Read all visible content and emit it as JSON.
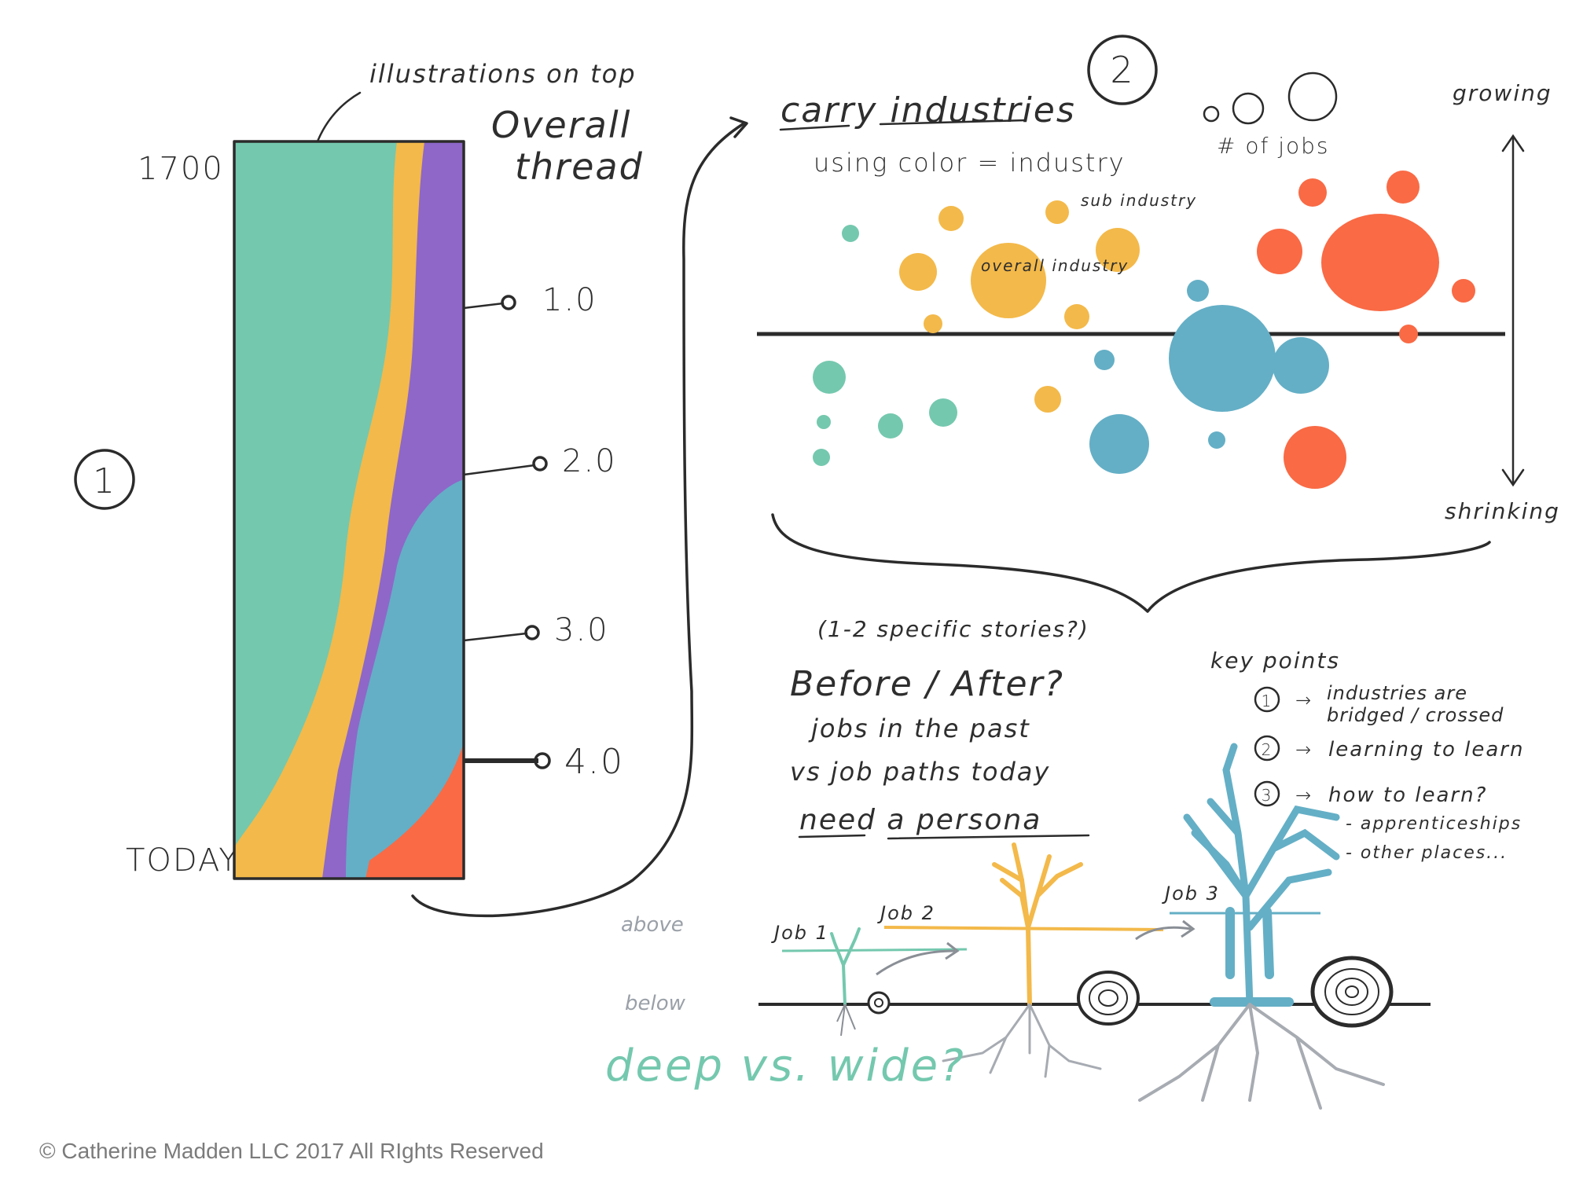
{
  "section1": {
    "number": "1",
    "annotation": "illustrations on top",
    "title_line1": "Overall",
    "title_line2": "thread",
    "year_top": "1700",
    "year_bottom": "TODAY",
    "markers": [
      "1.0",
      "2.0",
      "3.0",
      "4.0"
    ]
  },
  "section2": {
    "number": "2",
    "title": "carry industries",
    "subtitle": "using color = industry",
    "size_legend": "# of jobs",
    "axis_top": "growing",
    "axis_bottom": "shrinking",
    "label_sub": "sub industry",
    "label_overall": "overall industry"
  },
  "stories": {
    "note": "(1-2 specific stories?)",
    "heading": "Before / After?",
    "line1": "jobs in the past",
    "line2": "vs job paths today",
    "line3": "need a persona"
  },
  "key_points": {
    "title": "key points",
    "items": [
      {
        "num": "1",
        "text": "industries are bridged / crossed"
      },
      {
        "num": "2",
        "text": "learning to learn"
      },
      {
        "num": "3",
        "text": "how to learn?"
      }
    ],
    "sub_items": [
      "- apprenticeships",
      "- other places..."
    ]
  },
  "trees": {
    "above": "above",
    "below": "below",
    "jobs": [
      "Job 1",
      "Job 2",
      "Job 3"
    ],
    "question": "deep vs. wide?"
  },
  "colors": {
    "teal": "#74c8ae",
    "yellow": "#f3b94a",
    "purple": "#8e67c9",
    "blue": "#64afc6",
    "orange": "#f96a45",
    "ink": "#2b2b2b"
  },
  "footer": {
    "copyright": "© Catherine Madden LLC 2017 All RIghts Reserved"
  }
}
